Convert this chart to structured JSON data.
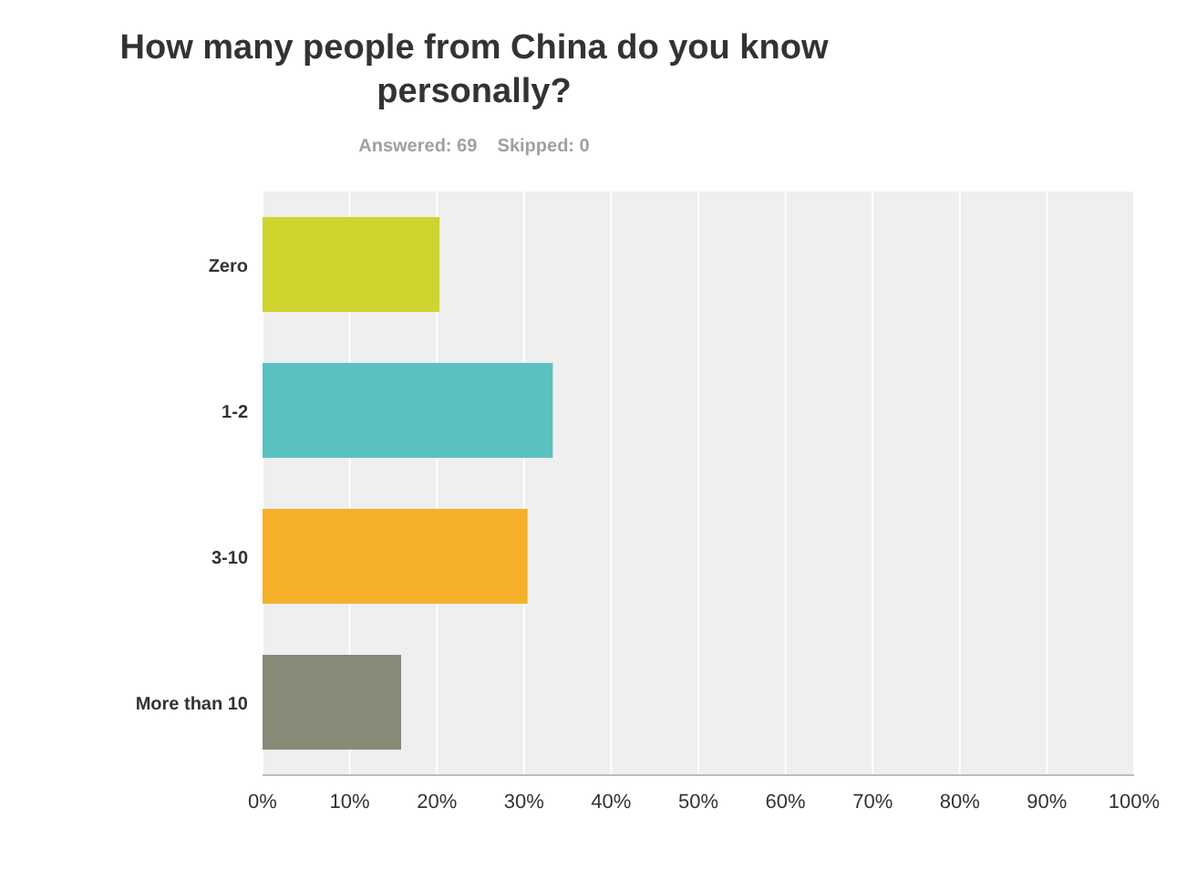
{
  "chart_data": {
    "type": "bar",
    "orientation": "horizontal",
    "title": "How many people from China do you know personally?",
    "subtitle": "Answered: 69    Skipped: 0",
    "categories": [
      "Zero",
      "1-2",
      "3-10",
      "More than 10"
    ],
    "values": [
      20.3,
      33.3,
      30.4,
      15.9
    ],
    "colors": [
      "#d0d42f",
      "#5bc0c0",
      "#f5b02a",
      "#8a8a78"
    ],
    "xlim": [
      0,
      100
    ],
    "xticks": [
      {
        "value": 0,
        "label": "0%"
      },
      {
        "value": 10,
        "label": "10%"
      },
      {
        "value": 20,
        "label": "20%"
      },
      {
        "value": 30,
        "label": "30%"
      },
      {
        "value": 40,
        "label": "40%"
      },
      {
        "value": 50,
        "label": "50%"
      },
      {
        "value": 60,
        "label": "60%"
      },
      {
        "value": 70,
        "label": "70%"
      },
      {
        "value": 80,
        "label": "80%"
      },
      {
        "value": 90,
        "label": "90%"
      },
      {
        "value": 100,
        "label": "100%"
      }
    ],
    "grid": "x"
  }
}
